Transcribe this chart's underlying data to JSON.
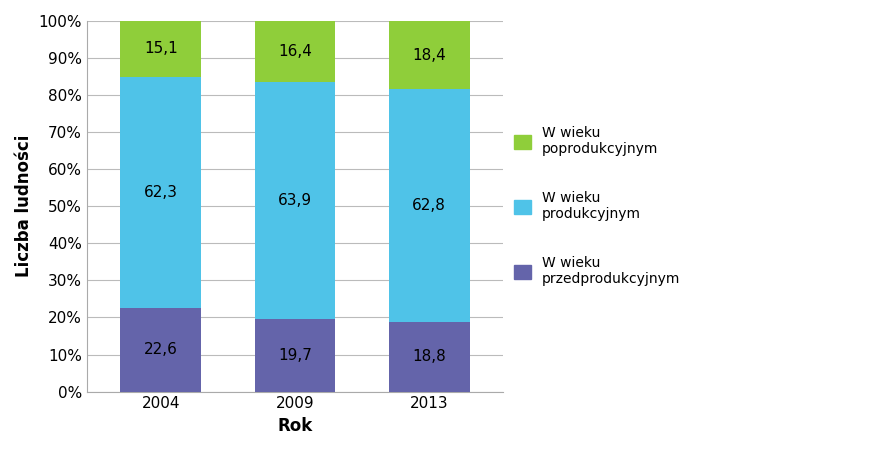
{
  "years": [
    "2004",
    "2009",
    "2013"
  ],
  "pre_production": [
    22.6,
    19.7,
    18.8
  ],
  "production": [
    62.3,
    63.9,
    62.8
  ],
  "post_production": [
    15.1,
    16.4,
    18.4
  ],
  "colors": {
    "pre": "#6464aa",
    "prod": "#4fc3e8",
    "post": "#8fce3a"
  },
  "ylabel": "Liczba ludności",
  "xlabel": "Rok",
  "legend_labels": [
    "W wieku\npoprodukcyjnym",
    "W wieku\nprodukcyjnym",
    "W wieku\nprzedprodukcyjnym"
  ],
  "bar_width": 0.6,
  "yticks": [
    0,
    10,
    20,
    30,
    40,
    50,
    60,
    70,
    80,
    90,
    100
  ],
  "ytick_labels": [
    "0%",
    "10%",
    "20%",
    "30%",
    "40%",
    "50%",
    "60%",
    "70%",
    "80%",
    "90%",
    "100%"
  ]
}
